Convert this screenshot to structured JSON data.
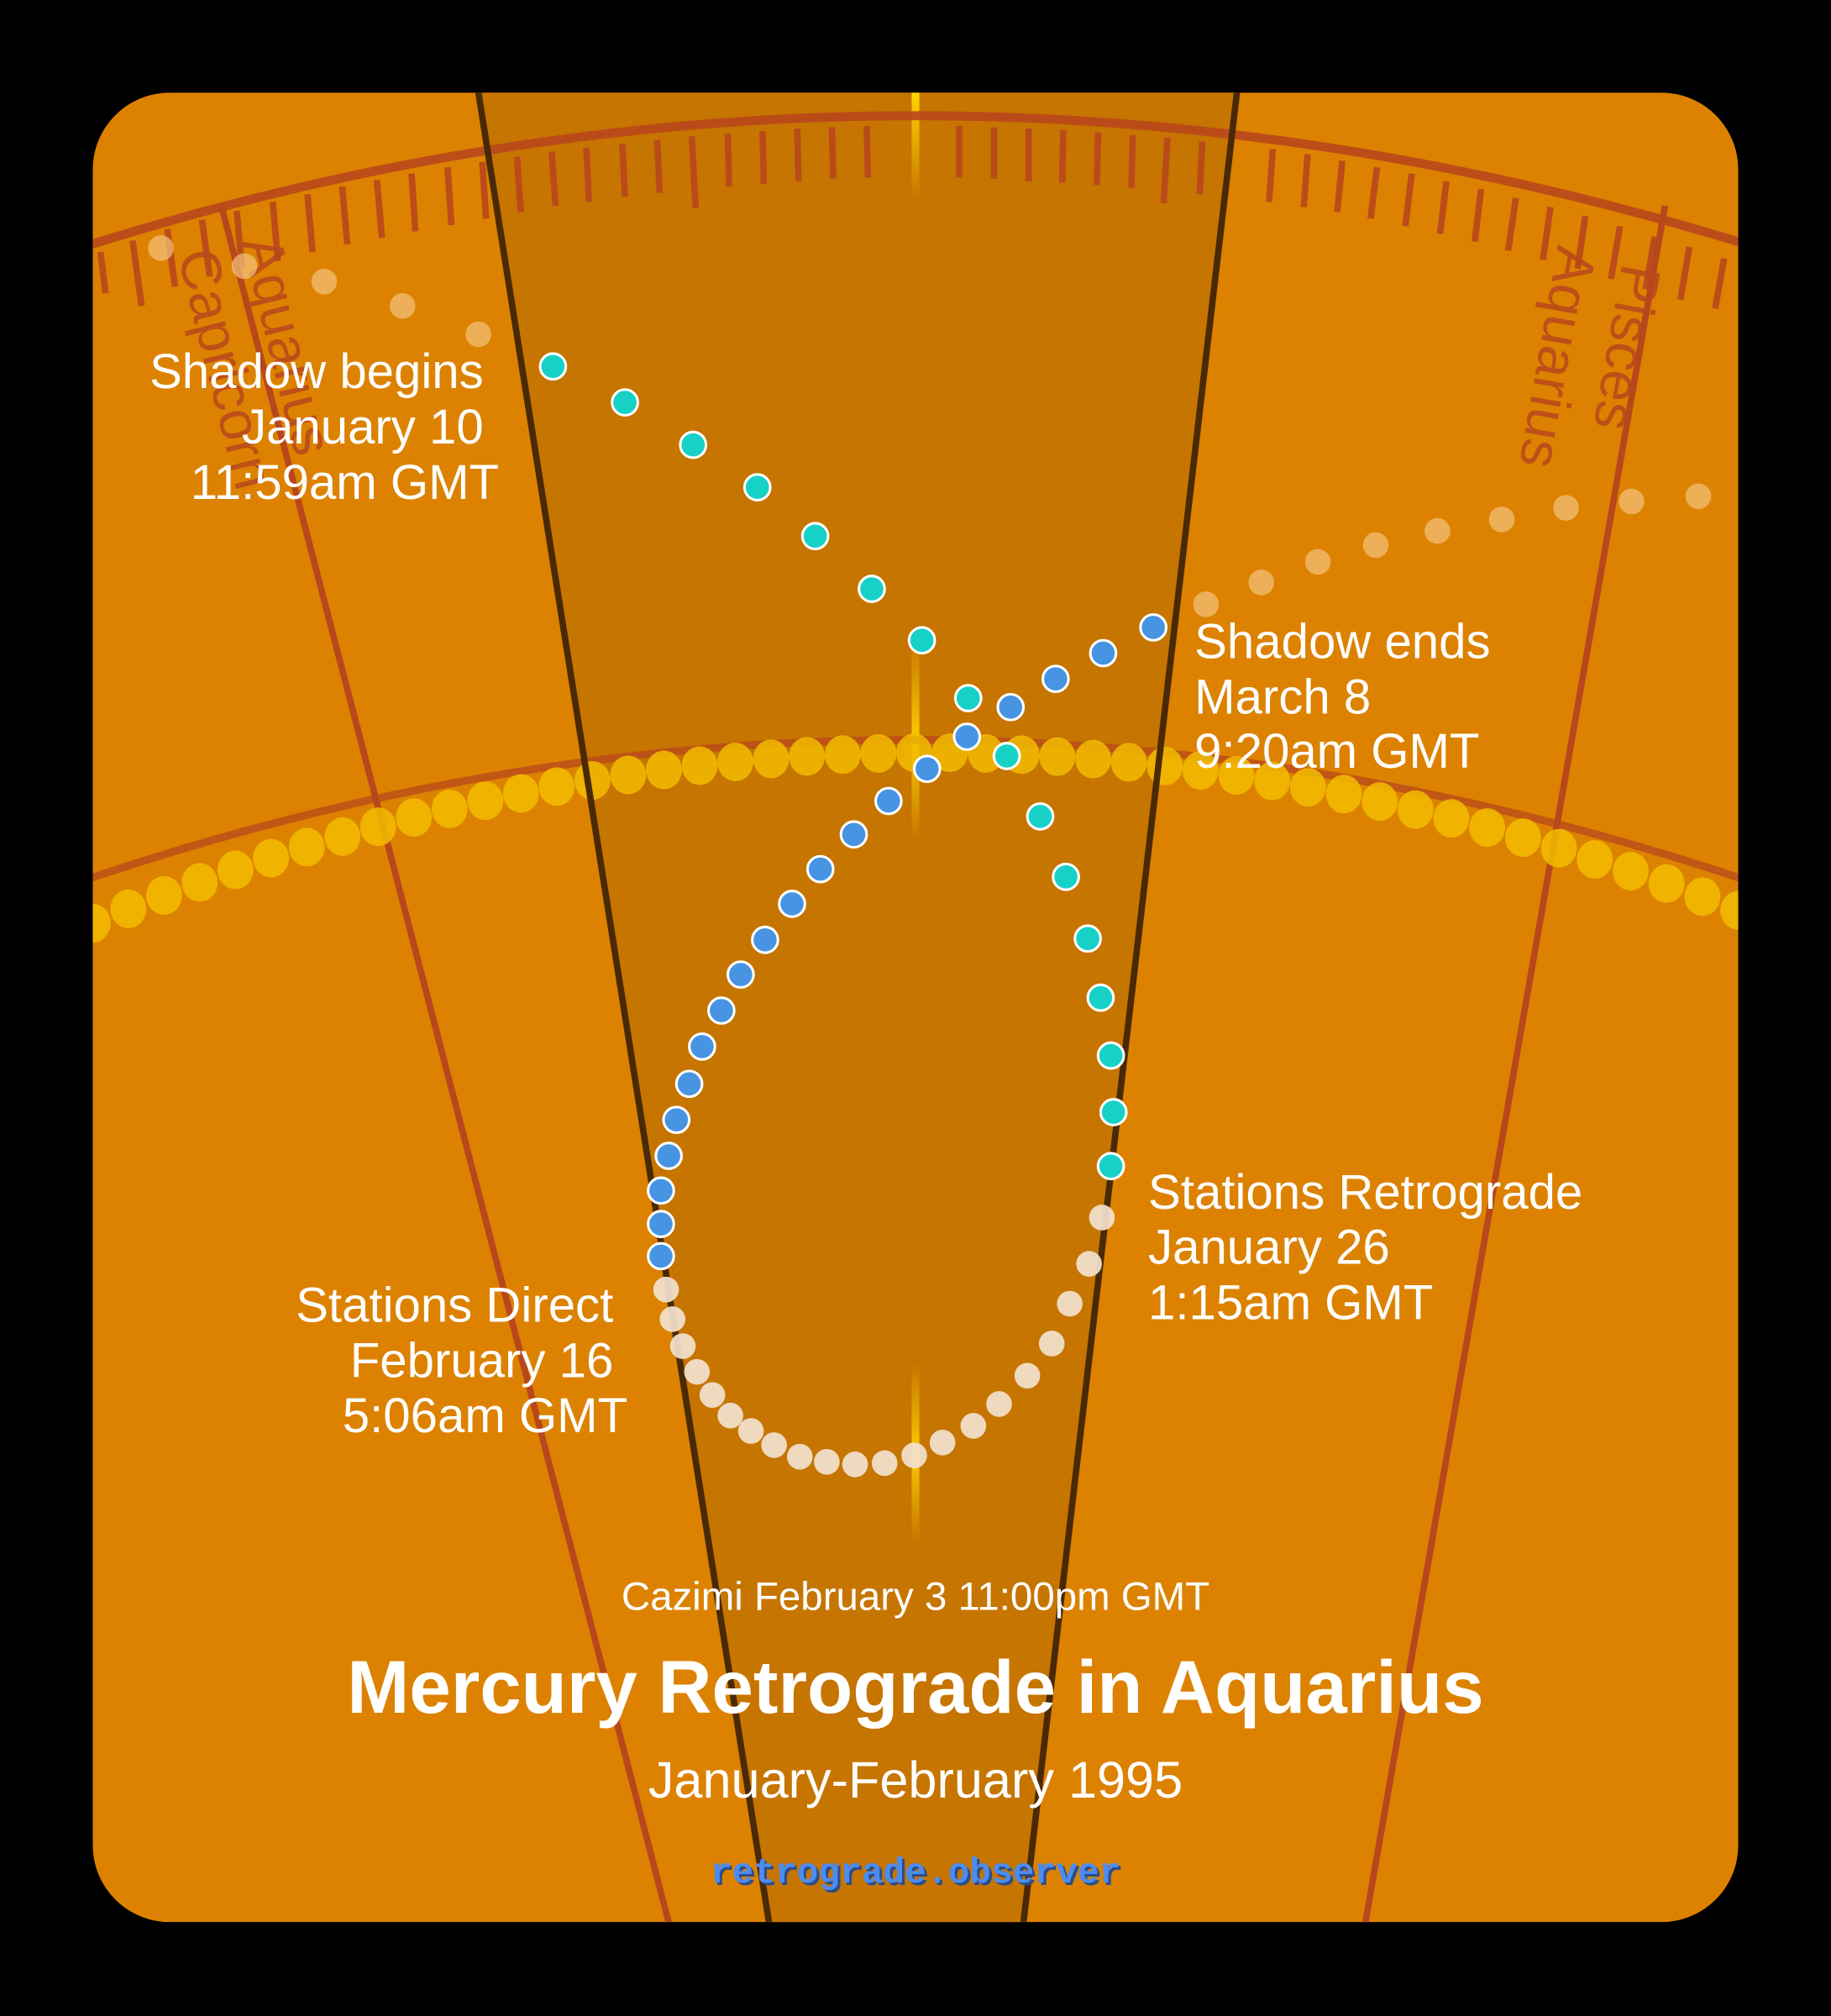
{
  "colors": {
    "background": "#000000",
    "card": "#DC8200",
    "center_band": "#C67500",
    "band_edge": "#4A2A06",
    "zodiac_line": "#B8471C",
    "sun_dots": "#F2BC00",
    "cazimi_marker": "#FFD400",
    "pre_shadow_dots": "#F3C27E",
    "shadow_dots": "#17D1C6",
    "retrograde_dots": "#F2E2CF",
    "post_retro_dots": "#4794E3",
    "site_link": "#4C8CF0"
  },
  "zodiac": {
    "left_outer_label": "Capricorn",
    "left_inner_label": "Aquarius",
    "right_inner_label": "Aquarius",
    "right_outer_label": "Pisces"
  },
  "events": {
    "shadow_begins": {
      "title": "Shadow begins",
      "date": "January 10",
      "time": "11:59am GMT"
    },
    "shadow_ends": {
      "title": "Shadow ends",
      "date": "March 8",
      "time": "9:20am GMT"
    },
    "stations_retrograde": {
      "title": "Stations Retrograde",
      "date": "January 26",
      "time": "1:15am GMT"
    },
    "stations_direct": {
      "title": "Stations Direct",
      "date": "February 16",
      "time": "5:06am GMT"
    },
    "cazimi": "Cazimi February 3 11:00pm GMT"
  },
  "title": "Mercury Retrograde in Aquarius",
  "subtitle": "January-February 1995",
  "site": "retrograde.observer",
  "chart_data": {
    "type": "scatter",
    "title": "Mercury Retrograde in Aquarius",
    "subtitle": "January-February 1995",
    "series": [
      {
        "name": "pre-shadow",
        "color": "#F3C27E",
        "points": [
          [
            125,
            193
          ],
          [
            190,
            207
          ],
          [
            252,
            219
          ],
          [
            313,
            238
          ],
          [
            372,
            260
          ]
        ]
      },
      {
        "name": "shadow (Jan 10 - Jan 26)",
        "color": "#17D1C6",
        "points": [
          [
            430,
            285
          ],
          [
            486,
            313
          ],
          [
            539,
            346
          ],
          [
            589,
            379
          ],
          [
            634,
            417
          ],
          [
            678,
            458
          ],
          [
            717,
            498
          ],
          [
            753,
            543
          ],
          [
            783,
            588
          ],
          [
            809,
            635
          ],
          [
            829,
            682
          ],
          [
            846,
            730
          ],
          [
            856,
            776
          ],
          [
            864,
            821
          ],
          [
            866,
            865
          ],
          [
            864,
            907
          ]
        ]
      },
      {
        "name": "retrograde (Jan 26 - Feb 16)",
        "color": "#F2E2CF",
        "points": [
          [
            857,
            947
          ],
          [
            847,
            983
          ],
          [
            832,
            1014
          ],
          [
            818,
            1045
          ],
          [
            799,
            1070
          ],
          [
            777,
            1092
          ],
          [
            757,
            1109
          ],
          [
            733,
            1122
          ],
          [
            711,
            1132
          ],
          [
            688,
            1138
          ],
          [
            665,
            1139
          ],
          [
            643,
            1137
          ],
          [
            622,
            1133
          ],
          [
            602,
            1124
          ],
          [
            584,
            1113
          ],
          [
            568,
            1101
          ],
          [
            554,
            1085
          ],
          [
            542,
            1067
          ],
          [
            531,
            1047
          ],
          [
            523,
            1026
          ],
          [
            518,
            1003
          ]
        ]
      },
      {
        "name": "post-retrograde shadow (Feb 16 - Mar 8)",
        "color": "#4794E3",
        "points": [
          [
            514,
            977
          ],
          [
            514,
            952
          ],
          [
            514,
            926
          ],
          [
            520,
            899
          ],
          [
            526,
            871
          ],
          [
            536,
            843
          ],
          [
            546,
            814
          ],
          [
            561,
            786
          ],
          [
            576,
            758
          ],
          [
            595,
            731
          ],
          [
            616,
            703
          ],
          [
            638,
            676
          ],
          [
            664,
            649
          ],
          [
            691,
            623
          ],
          [
            721,
            598
          ],
          [
            752,
            573
          ],
          [
            786,
            550
          ],
          [
            821,
            528
          ],
          [
            858,
            508
          ],
          [
            897,
            488
          ]
        ]
      },
      {
        "name": "post-shadow",
        "color": "#F3C27E",
        "points": [
          [
            938,
            470
          ],
          [
            981,
            453
          ],
          [
            1025,
            437
          ],
          [
            1070,
            424
          ],
          [
            1118,
            413
          ],
          [
            1168,
            404
          ],
          [
            1218,
            395
          ],
          [
            1269,
            390
          ],
          [
            1321,
            386
          ]
        ]
      }
    ],
    "annotations": [
      "Shadow begins January 10 11:59am GMT",
      "Shadow ends March 8 9:20am GMT",
      "Stations Retrograde January 26 1:15am GMT",
      "Stations Direct February 16 5:06am GMT",
      "Cazimi February 3 11:00pm GMT"
    ],
    "zodiac_labels": [
      "Capricorn",
      "Aquarius",
      "Aquarius",
      "Pisces"
    ]
  }
}
